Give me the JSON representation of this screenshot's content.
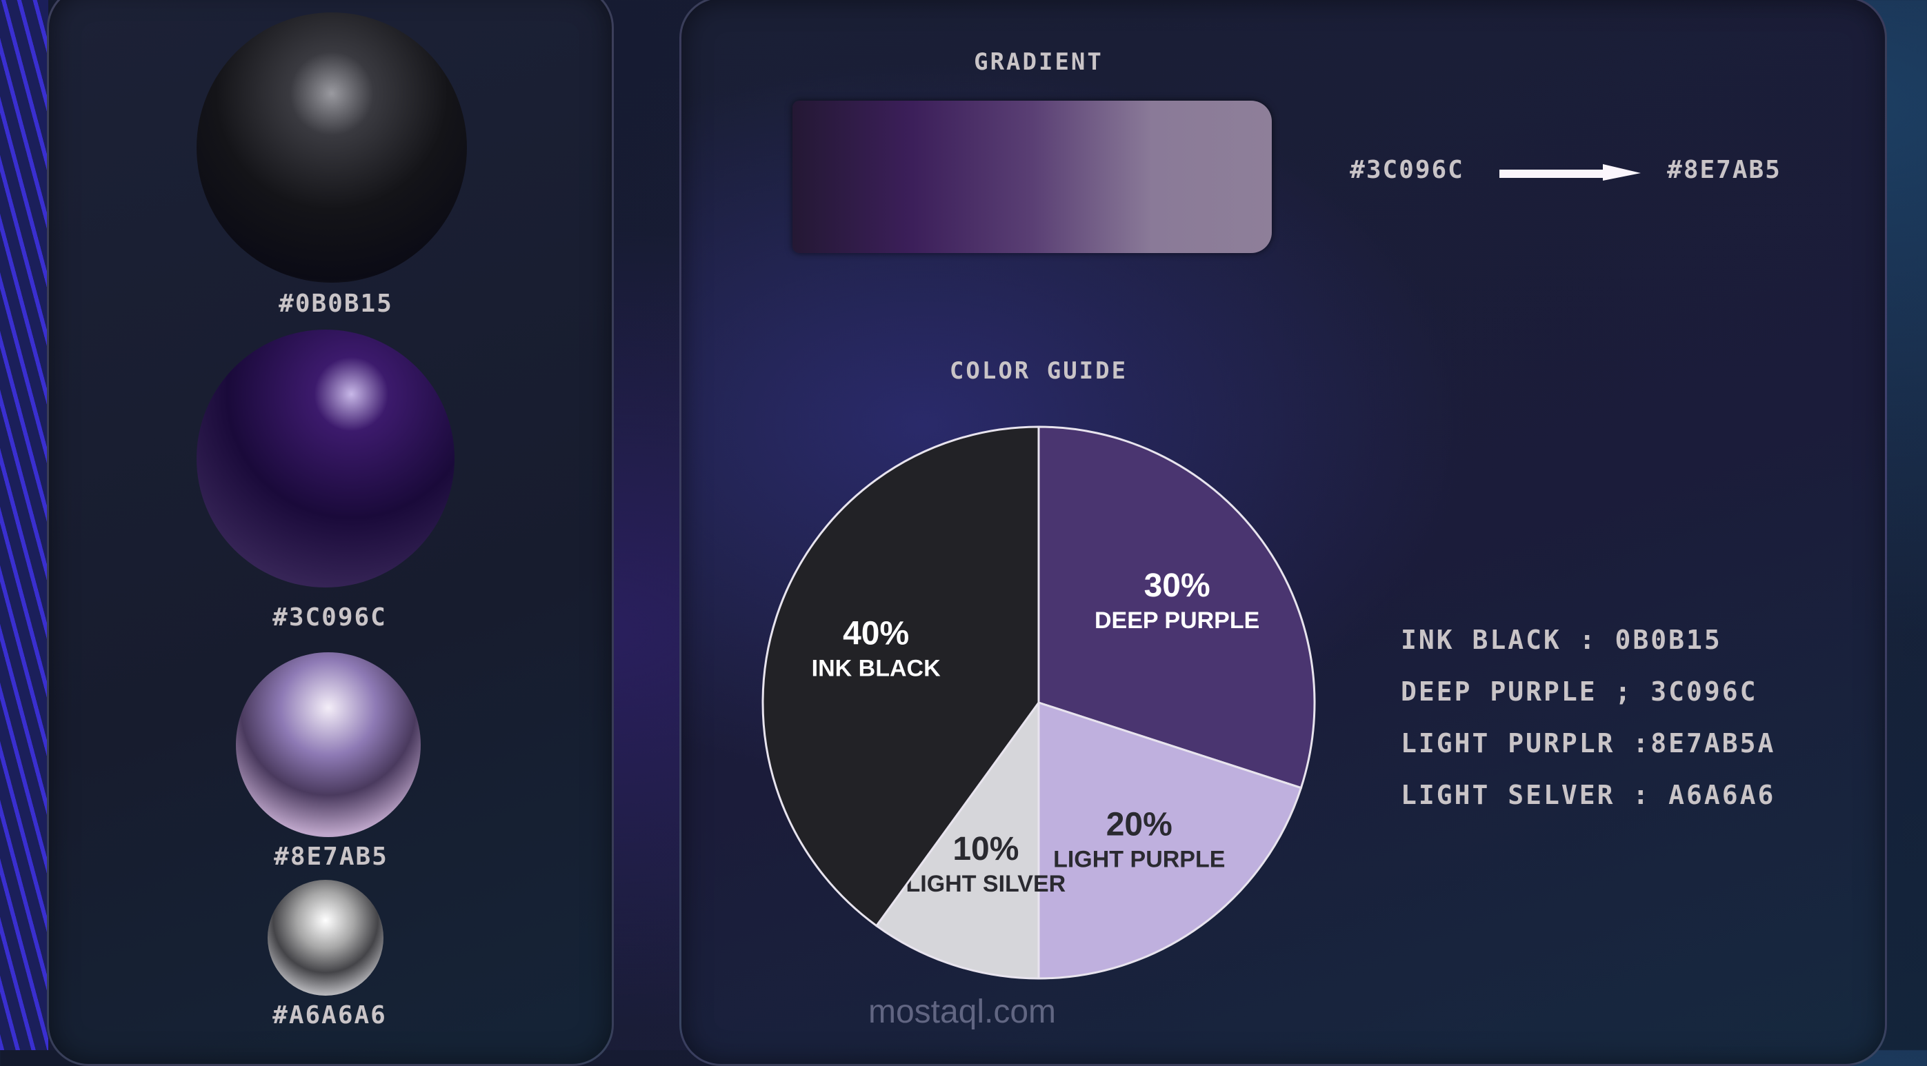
{
  "swatches": [
    {
      "hex": "#0B0B15",
      "color": "#0b0b15"
    },
    {
      "hex": "#3C096C",
      "color": "#3c096c"
    },
    {
      "hex": "#8E7AB5",
      "color": "#8e7ab5"
    },
    {
      "hex": "#A6A6A6",
      "color": "#a6a6a6"
    }
  ],
  "gradient": {
    "title": "GRADIENT",
    "from": "#3C096C",
    "to": "#8E7AB5"
  },
  "chart_data": {
    "type": "pie",
    "title": "COLOR GUIDE",
    "slices": [
      {
        "name": "DEEP PURPLE",
        "value": 30,
        "label": "30%",
        "color": "#4a3570"
      },
      {
        "name": "LIGHT PURPLE",
        "value": 20,
        "label": "20%",
        "color": "#bfb0de"
      },
      {
        "name": "LIGHT SILVER",
        "value": 10,
        "label": "10%",
        "color": "#d6d6da"
      },
      {
        "name": "INK BLACK",
        "value": 40,
        "label": "40%",
        "color": "#222226"
      }
    ]
  },
  "legend": [
    "INK BLACK : 0B0B15",
    "DEEP PURPLE ; 3C096C",
    "LIGHT PURPLR :8E7AB5A",
    "LIGHT SELVER : A6A6A6"
  ],
  "watermark": "mostaql.com"
}
